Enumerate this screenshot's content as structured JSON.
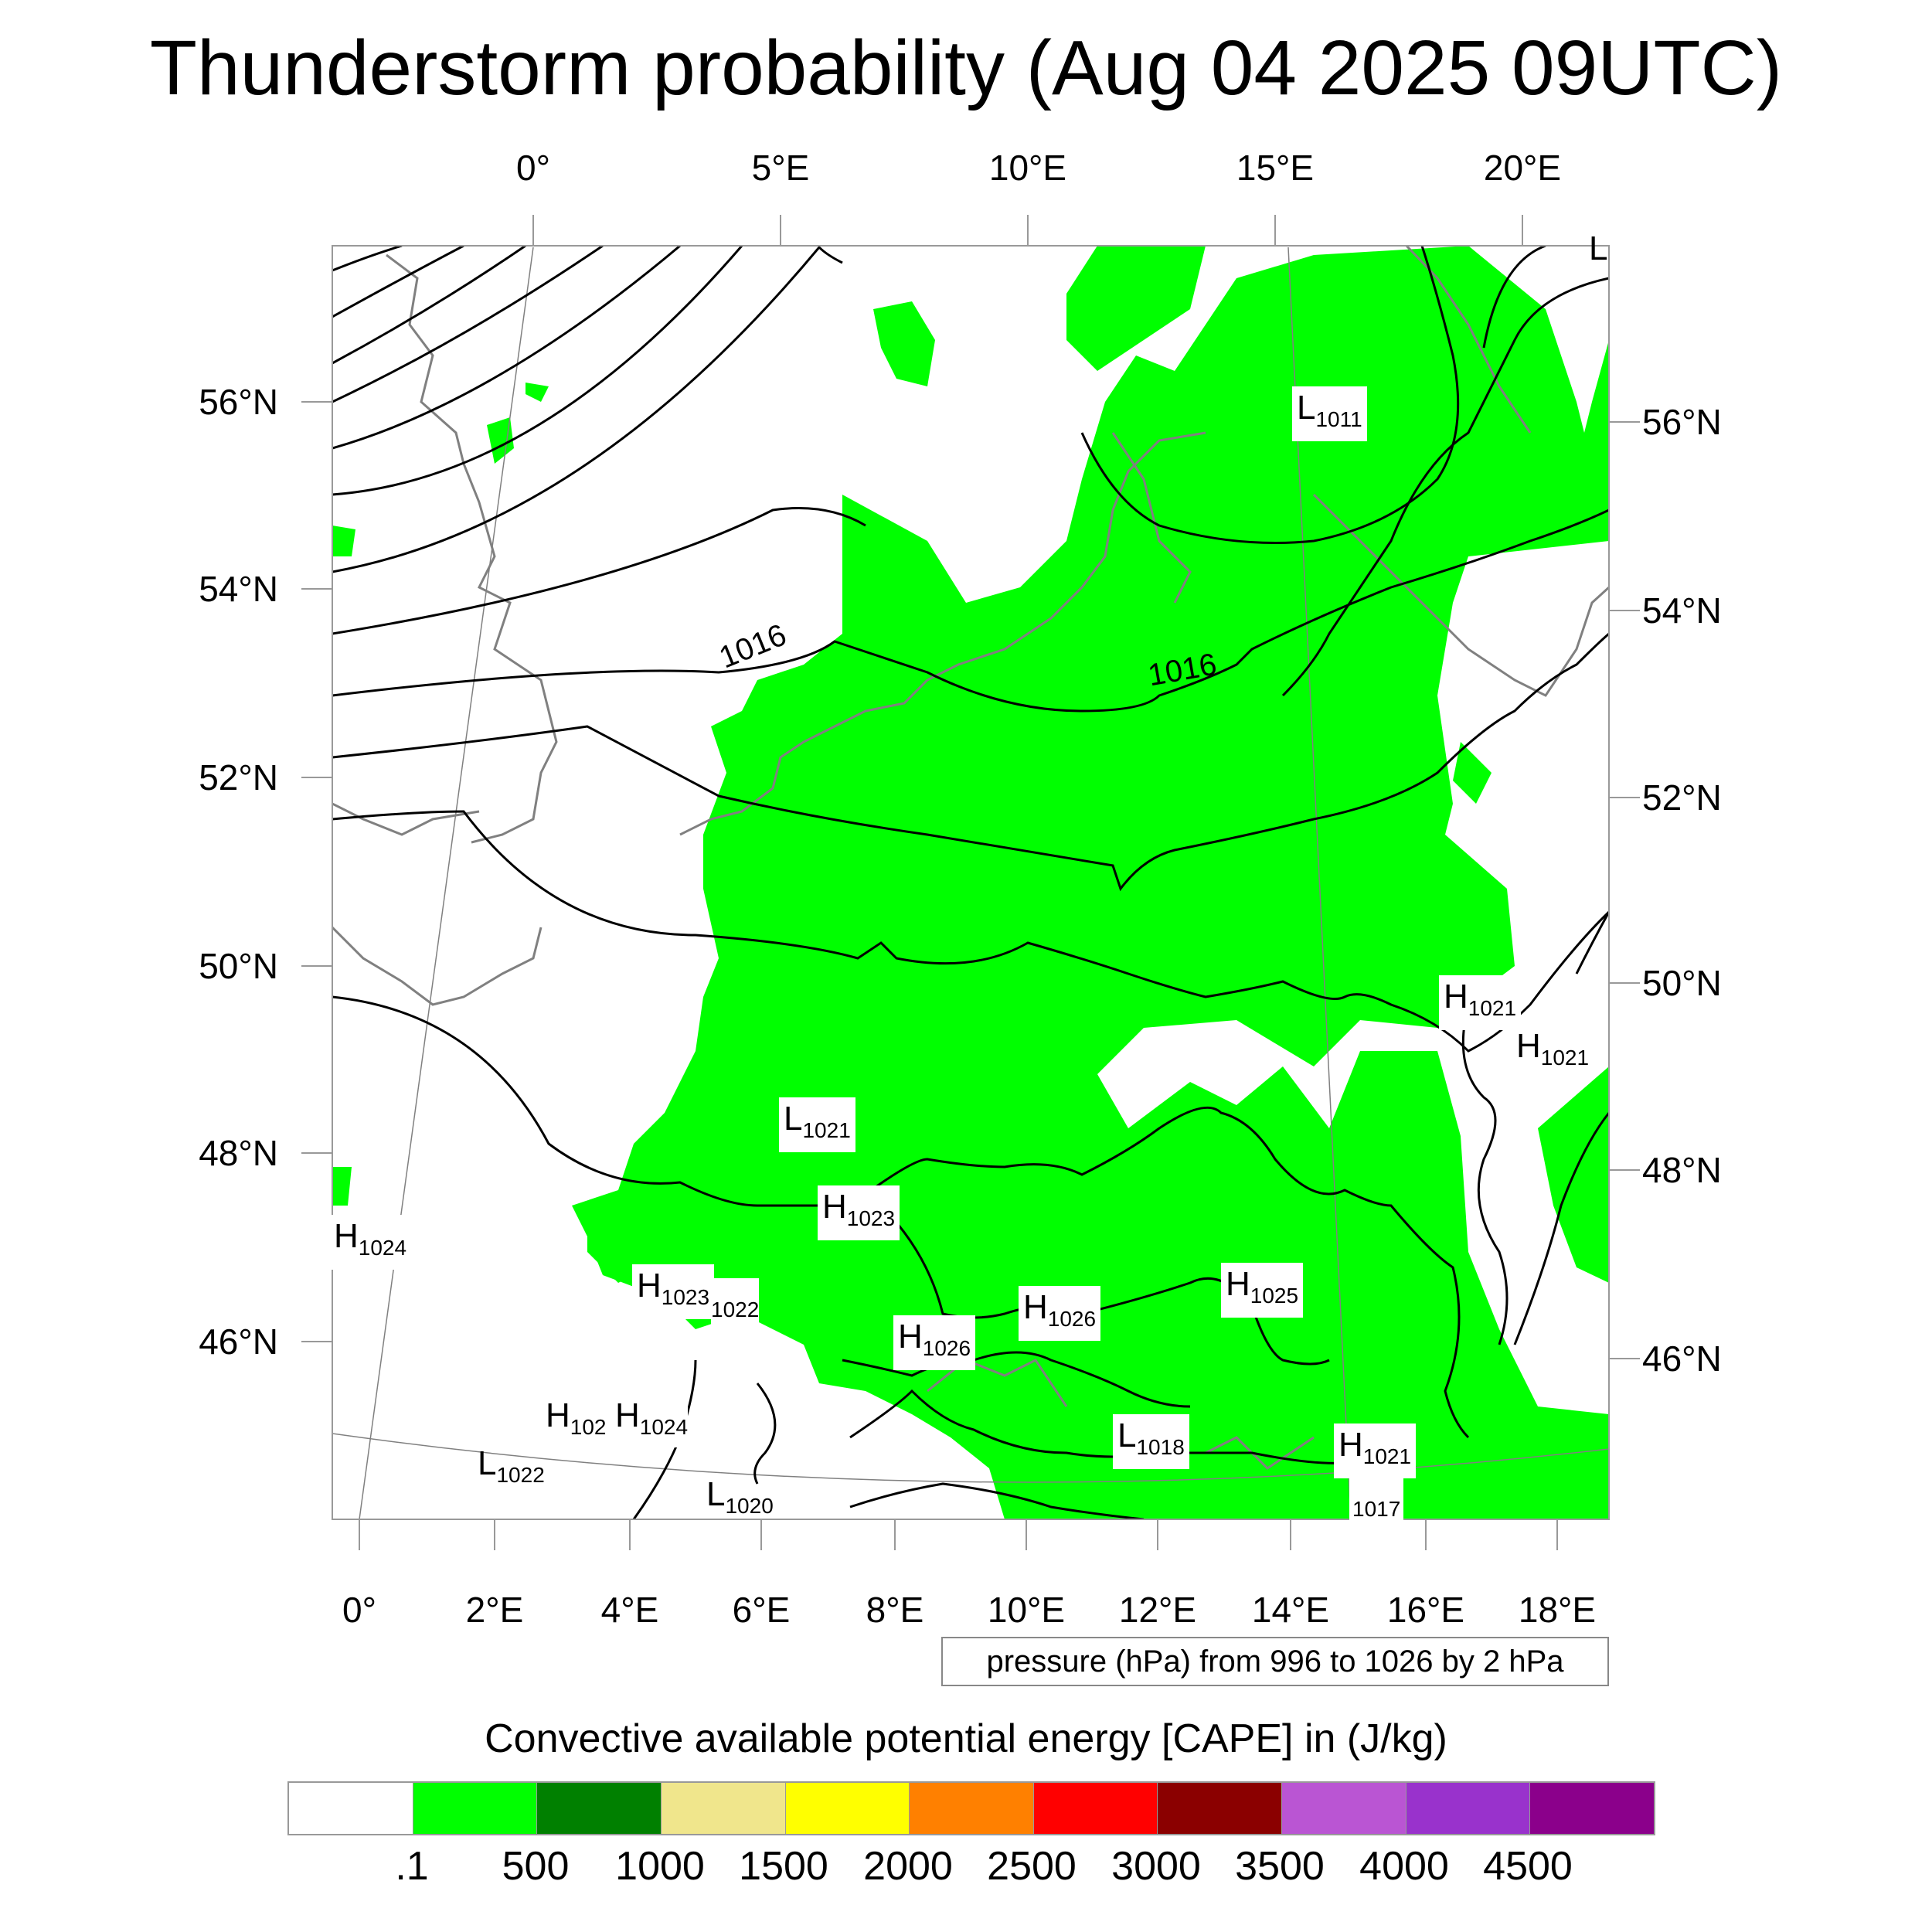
{
  "title": "Thunderstorm probability (Aug 04 2025 09UTC)",
  "map": {
    "top_lon_labels": [
      "0°",
      "5°E",
      "10°E",
      "15°E",
      "20°E"
    ],
    "bottom_lon_labels": [
      "0°",
      "2°E",
      "4°E",
      "6°E",
      "8°E",
      "10°E",
      "12°E",
      "14°E",
      "16°E",
      "18°E"
    ],
    "left_lat_labels": [
      "56°N",
      "54°N",
      "52°N",
      "50°N",
      "48°N",
      "46°N"
    ],
    "right_lat_labels": [
      "56°N",
      "54°N",
      "52°N",
      "50°N",
      "48°N",
      "46°N"
    ],
    "contour_labels": [
      "1016",
      "1016"
    ],
    "pressure_centers": [
      {
        "kind": "L",
        "value": "1011"
      },
      {
        "kind": "L",
        "value": "1021"
      },
      {
        "kind": "H",
        "value": "1023"
      },
      {
        "kind": "H",
        "value": "1024"
      },
      {
        "kind": "H",
        "value": "1023"
      },
      {
        "kind": "",
        "value": "1022"
      },
      {
        "kind": "H",
        "value": "1026"
      },
      {
        "kind": "H",
        "value": "1026"
      },
      {
        "kind": "H",
        "value": "1025"
      },
      {
        "kind": "H",
        "value": "1021"
      },
      {
        "kind": "H",
        "value": "1021"
      },
      {
        "kind": "H",
        "value": "102"
      },
      {
        "kind": "H",
        "value": "1024"
      },
      {
        "kind": "L",
        "value": "1022"
      },
      {
        "kind": "L",
        "value": "1020"
      },
      {
        "kind": "L",
        "value": "1018"
      },
      {
        "kind": "H",
        "value": "1021"
      },
      {
        "kind": "",
        "value": "1017"
      },
      {
        "kind": "L",
        "value": ""
      }
    ],
    "colors": {
      "cape_fill": "#00ff00",
      "isobar": "#000000",
      "coastline": "#808080"
    }
  },
  "pressure_note": "pressure (hPa) from 996 to 1026 by 2 hPa",
  "colorbar": {
    "title": "Convective available potential energy [CAPE] in (J/kg)",
    "colors": [
      "#ffffff",
      "#00ff00",
      "#008000",
      "#f0e68c",
      "#ffff00",
      "#ff8000",
      "#ff0000",
      "#8b0000",
      "#ba55d3",
      "#9932cc",
      "#8b008b"
    ],
    "labels": [
      ".1",
      "500",
      "1000",
      "1500",
      "2000",
      "2500",
      "3000",
      "3500",
      "4000",
      "4500"
    ]
  }
}
